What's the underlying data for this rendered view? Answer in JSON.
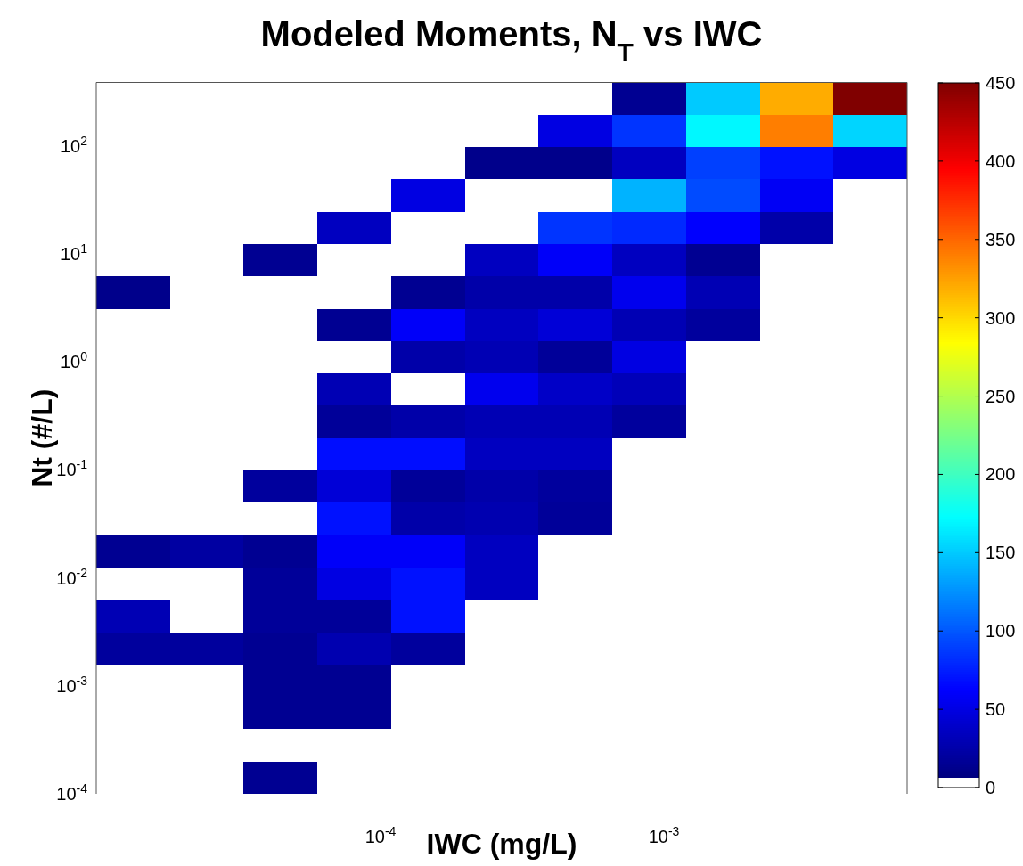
{
  "chart_data": {
    "type": "heatmap",
    "title": "Modeled Moments, N$_{T}$ vs IWC",
    "xlabel": "IWC (mg/L)",
    "ylabel": "Nt (#/L)",
    "categories": [
      null,
      null,
      null,
      null,
      null,
      null,
      null,
      null,
      null,
      null,
      null
    ],
    "y_categories": [
      null,
      null,
      null,
      null,
      null,
      null,
      null,
      null,
      null,
      null,
      null,
      null,
      null,
      null,
      null,
      null,
      null,
      null,
      null,
      null,
      null,
      null
    ],
    "annotations": [
      "10$^{-4}$",
      "10$^{-3}$",
      "10$^{-4}$",
      "10$^{-3}$",
      "10$^{-2}$",
      "10$^{-1}$",
      "10$^{0}$",
      "10$^{1}$",
      "10$^{2}$"
    ],
    "clim": [
      0,
      450
    ],
    "cticks": [
      0,
      50,
      100,
      150,
      200,
      250,
      300,
      350,
      400,
      450
    ],
    "cells": [
      [
        0,
        0,
        0,
        0,
        0,
        0,
        0,
        15,
        150,
        320,
        450
      ],
      [
        0,
        0,
        0,
        0,
        0,
        0,
        50,
        85,
        170,
        340,
        155
      ],
      [
        0,
        0,
        0,
        0,
        0,
        12,
        12,
        35,
        90,
        70,
        50
      ],
      [
        0,
        0,
        0,
        0,
        50,
        0,
        0,
        140,
        95,
        58,
        0
      ],
      [
        0,
        0,
        0,
        35,
        0,
        0,
        85,
        80,
        62,
        25,
        0
      ],
      [
        0,
        0,
        15,
        0,
        0,
        35,
        60,
        35,
        15,
        0,
        0
      ],
      [
        12,
        0,
        0,
        0,
        15,
        25,
        25,
        55,
        30,
        0,
        0
      ],
      [
        0,
        0,
        0,
        15,
        60,
        35,
        45,
        30,
        20,
        0,
        0
      ],
      [
        0,
        0,
        0,
        0,
        25,
        30,
        18,
        50,
        0,
        0,
        0
      ],
      [
        0,
        0,
        0,
        30,
        0,
        55,
        38,
        32,
        0,
        0,
        0
      ],
      [
        0,
        0,
        0,
        18,
        25,
        30,
        30,
        20,
        0,
        0,
        0
      ],
      [
        0,
        0,
        0,
        68,
        68,
        35,
        35,
        0,
        0,
        0,
        0
      ],
      [
        0,
        0,
        20,
        45,
        18,
        25,
        20,
        0,
        0,
        0,
        0
      ],
      [
        0,
        0,
        0,
        70,
        25,
        28,
        18,
        0,
        0,
        0,
        0
      ],
      [
        15,
        22,
        15,
        60,
        60,
        35,
        0,
        0,
        0,
        0,
        0
      ],
      [
        0,
        0,
        18,
        50,
        70,
        35,
        0,
        0,
        0,
        0,
        0
      ],
      [
        30,
        0,
        18,
        18,
        70,
        0,
        0,
        0,
        0,
        0,
        0
      ],
      [
        20,
        20,
        15,
        28,
        20,
        0,
        0,
        0,
        0,
        0,
        0
      ],
      [
        0,
        0,
        15,
        15,
        0,
        0,
        0,
        0,
        0,
        0,
        0
      ],
      [
        0,
        0,
        15,
        15,
        0,
        0,
        0,
        0,
        0,
        0,
        0
      ],
      [
        0,
        0,
        0,
        0,
        0,
        0,
        0,
        0,
        0,
        0,
        0
      ],
      [
        0,
        0,
        15,
        0,
        0,
        0,
        0,
        0,
        0,
        0,
        0
      ]
    ]
  }
}
